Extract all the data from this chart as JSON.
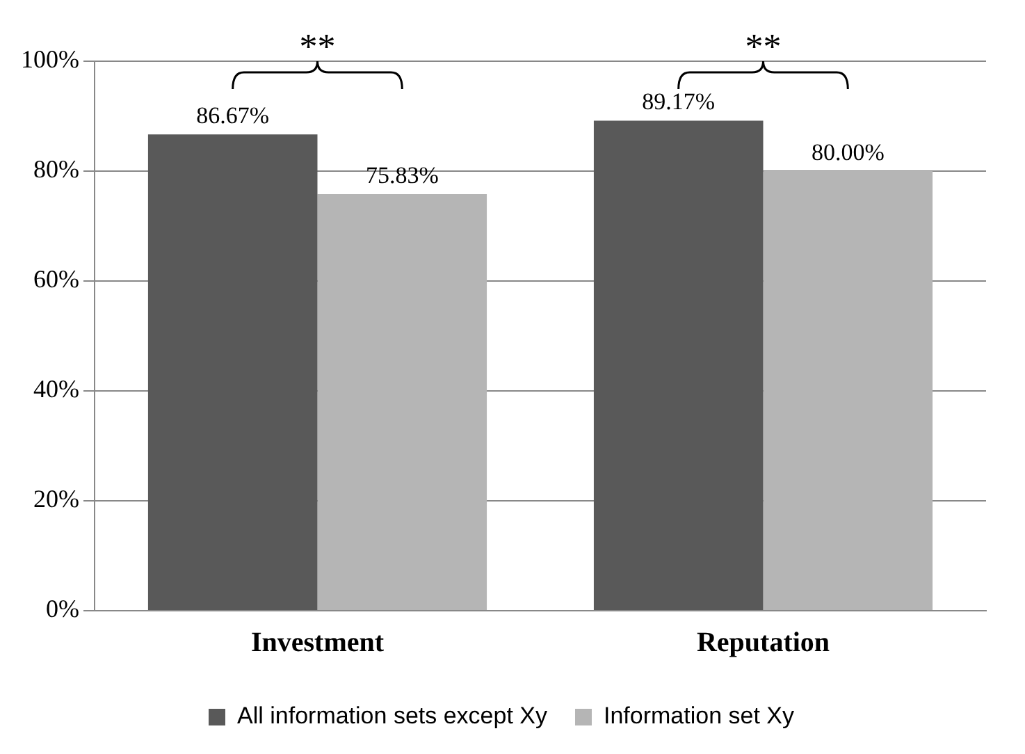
{
  "chart_data": {
    "type": "bar",
    "categories": [
      "Investment",
      "Reputation"
    ],
    "series": [
      {
        "name": "All information sets except Xy",
        "color": "#595959",
        "values": [
          86.67,
          89.17
        ],
        "value_labels": [
          "86.67%",
          "89.17%"
        ]
      },
      {
        "name": "Information set Xy",
        "color": "#b5b5b5",
        "values": [
          75.83,
          80.0
        ],
        "value_labels": [
          "75.83%",
          "80.00%"
        ]
      }
    ],
    "ylim": [
      0,
      100
    ],
    "yticks": [
      {
        "value": 0,
        "label": "0%"
      },
      {
        "value": 20,
        "label": "20%"
      },
      {
        "value": 40,
        "label": "40%"
      },
      {
        "value": 60,
        "label": "60%"
      },
      {
        "value": 80,
        "label": "80%"
      },
      {
        "value": 100,
        "label": "100%"
      }
    ],
    "grid": "y",
    "legend": "bottom",
    "annotations": [
      "**",
      "**"
    ]
  }
}
